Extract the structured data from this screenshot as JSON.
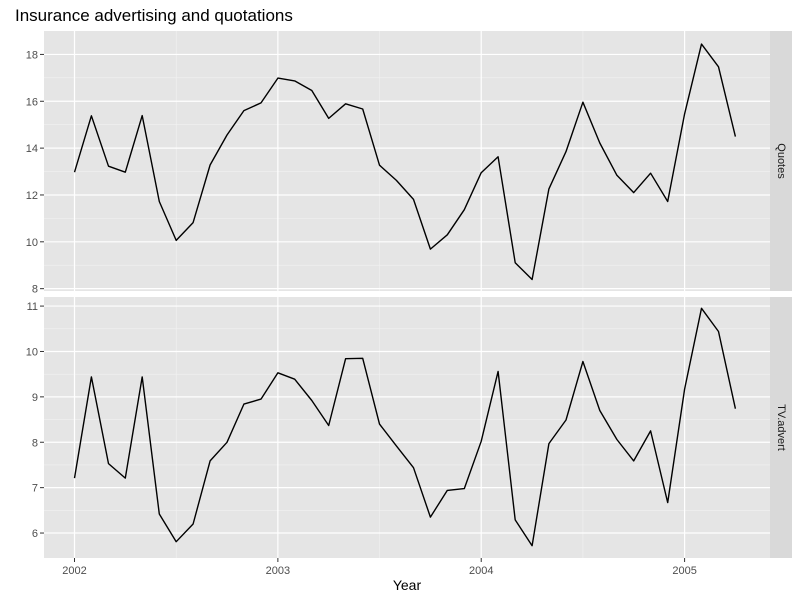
{
  "chart_data": {
    "type": "line",
    "title": "Insurance advertising and quotations",
    "xlabel": "Year",
    "x_ticks": [
      "2002",
      "2003",
      "2004",
      "2005"
    ],
    "x_tick_values": [
      2002,
      2003,
      2004,
      2005
    ],
    "xlim": [
      2001.85,
      2005.42
    ],
    "x": [
      2002.0,
      2002.083,
      2002.167,
      2002.25,
      2002.333,
      2002.417,
      2002.5,
      2002.583,
      2002.667,
      2002.75,
      2002.833,
      2002.917,
      2003.0,
      2003.083,
      2003.167,
      2003.25,
      2003.333,
      2003.417,
      2003.5,
      2003.583,
      2003.667,
      2003.75,
      2003.833,
      2003.917,
      2004.0,
      2004.083,
      2004.167,
      2004.25,
      2004.333,
      2004.417,
      2004.5,
      2004.583,
      2004.667,
      2004.75,
      2004.833,
      2004.917,
      2005.0,
      2005.083,
      2005.167,
      2005.25
    ],
    "panels": [
      {
        "strip": "Quotes",
        "ylim": [
          7.9,
          19.0
        ],
        "y_ticks": [
          8,
          10,
          12,
          14,
          16,
          18
        ],
        "values": [
          12.97,
          15.38,
          13.23,
          12.97,
          15.39,
          11.72,
          10.06,
          10.82,
          13.28,
          14.56,
          15.6,
          15.93,
          16.99,
          16.87,
          16.46,
          15.27,
          15.89,
          15.67,
          13.27,
          12.62,
          11.81,
          9.69,
          10.3,
          11.37,
          12.95,
          13.63,
          9.11,
          8.39,
          12.26,
          13.85,
          15.96,
          14.22,
          12.84,
          12.1,
          12.93,
          11.72,
          15.46,
          18.44,
          17.47,
          14.49
        ]
      },
      {
        "strip": "TV.advert",
        "ylim": [
          5.45,
          11.2
        ],
        "y_ticks": [
          6,
          7,
          8,
          9,
          10,
          11
        ],
        "values": [
          7.21,
          9.44,
          7.53,
          7.21,
          9.44,
          6.42,
          5.81,
          6.2,
          7.59,
          8.0,
          8.84,
          8.95,
          9.53,
          9.39,
          8.92,
          8.37,
          9.84,
          9.85,
          8.4,
          7.92,
          7.44,
          6.35,
          6.94,
          6.98,
          8.02,
          9.56,
          6.29,
          5.72,
          7.97,
          8.49,
          9.78,
          8.7,
          8.06,
          7.59,
          8.25,
          6.67,
          9.17,
          10.95,
          10.44,
          8.74
        ]
      }
    ],
    "grid": true,
    "legend": "none"
  }
}
